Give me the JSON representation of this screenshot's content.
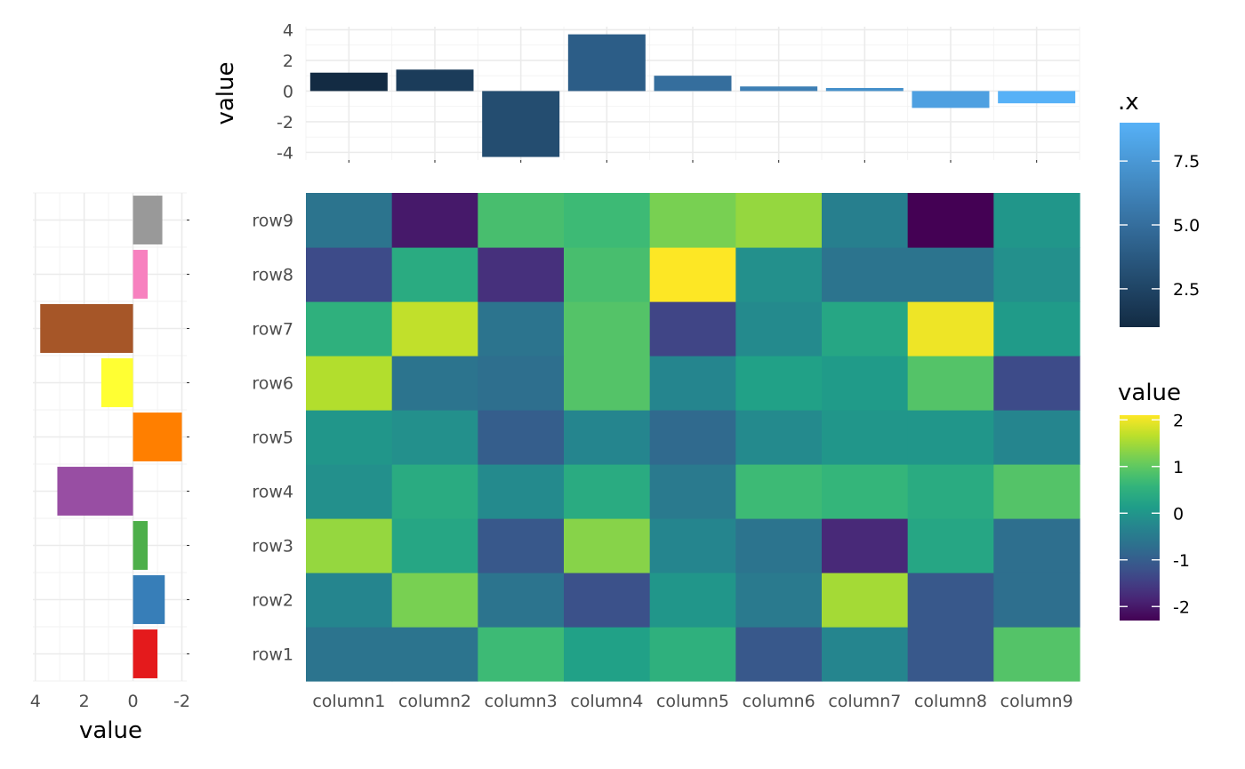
{
  "chart_data": [
    {
      "type": "heatmap",
      "name": "main",
      "columns": [
        "column1",
        "column2",
        "column3",
        "column4",
        "column5",
        "column6",
        "column7",
        "column8",
        "column9"
      ],
      "rows": [
        "row1",
        "row2",
        "row3",
        "row4",
        "row5",
        "row6",
        "row7",
        "row8",
        "row9"
      ],
      "values": [
        [
          -0.6,
          -0.6,
          0.7,
          0.2,
          0.5,
          -1.1,
          -0.3,
          -1.1,
          0.9
        ],
        [
          -0.3,
          1.2,
          -0.6,
          -1.2,
          0.0,
          -0.5,
          1.5,
          -1.1,
          -0.7
        ],
        [
          1.4,
          0.3,
          -1.1,
          1.3,
          -0.3,
          -0.6,
          -1.8,
          0.3,
          -0.7
        ],
        [
          -0.1,
          0.4,
          -0.2,
          0.4,
          -0.5,
          0.7,
          0.6,
          0.4,
          0.9
        ],
        [
          0.0,
          -0.1,
          -1.0,
          -0.3,
          -0.8,
          -0.2,
          0.0,
          0.0,
          -0.3
        ],
        [
          1.6,
          -0.6,
          -0.7,
          0.9,
          -0.3,
          0.2,
          0.1,
          0.9,
          -1.3
        ],
        [
          0.5,
          1.7,
          -0.6,
          0.9,
          -1.4,
          -0.2,
          0.3,
          2.0,
          0.1
        ],
        [
          -1.3,
          0.4,
          -1.7,
          0.8,
          2.1,
          -0.1,
          -0.6,
          -0.6,
          -0.1
        ],
        [
          -0.6,
          -2.0,
          0.8,
          0.7,
          1.2,
          1.4,
          -0.4,
          -2.4,
          0.0
        ]
      ],
      "xlabel": "",
      "ylabel": "",
      "legend": {
        "title": "value",
        "ticks": [
          -2,
          -1,
          0,
          1,
          2
        ],
        "range": [
          -2.3,
          2.1
        ],
        "placement": "right"
      }
    },
    {
      "type": "bar",
      "name": "top",
      "categories": [
        "column1",
        "column2",
        "column3",
        "column4",
        "column5",
        "column6",
        "column7",
        "column8",
        "column9"
      ],
      "values": [
        1.2,
        1.4,
        -4.3,
        3.7,
        1.0,
        0.3,
        0.2,
        -1.1,
        -0.8
      ],
      "xlabel": "",
      "ylabel": "value",
      "ylim": [
        -4.5,
        4.2
      ],
      "yticks": [
        4,
        2,
        0,
        -2,
        -4
      ],
      "yticklabels": [
        "4",
        "2",
        "0",
        "-2",
        "-4"
      ],
      "legend": {
        "title": ".x",
        "ticks": [
          2.5,
          5.0,
          7.5
        ],
        "ticklabels": [
          "2.5",
          "5.0",
          "7.5"
        ],
        "range": [
          1,
          9
        ],
        "placement": "right"
      }
    },
    {
      "type": "bar",
      "name": "left",
      "orientation": "horizontal",
      "reversed_x": true,
      "categories": [
        "row1",
        "row2",
        "row3",
        "row4",
        "row5",
        "row6",
        "row7",
        "row8",
        "row9"
      ],
      "values": [
        -1.0,
        -1.3,
        -0.6,
        3.1,
        -2.0,
        1.3,
        3.8,
        -0.6,
        -1.2
      ],
      "colors": [
        "#e41a1c",
        "#377eb8",
        "#4daf4a",
        "#984ea3",
        "#ff7f00",
        "#ffff33",
        "#a65628",
        "#f781bf",
        "#999999"
      ],
      "xlabel": "value",
      "ylabel": "",
      "xlim": [
        4.1,
        -2.2
      ],
      "xticks": [
        4,
        2,
        0,
        -2
      ],
      "xticklabels": [
        "4",
        "2",
        "0",
        "-2"
      ]
    }
  ]
}
